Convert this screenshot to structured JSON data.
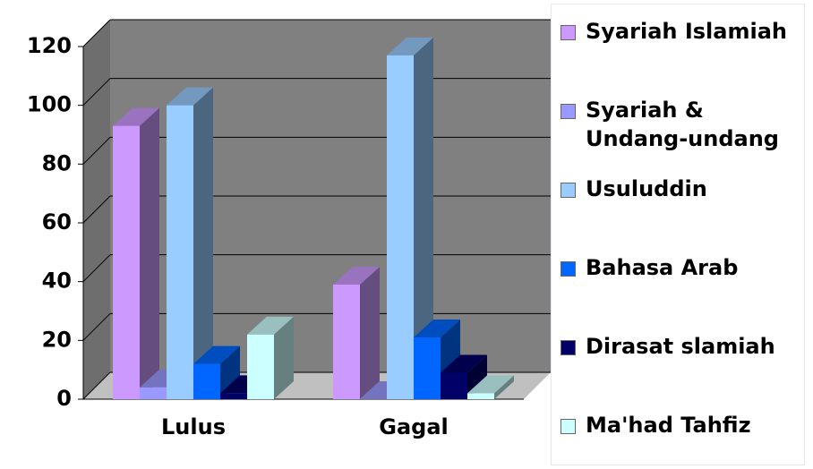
{
  "chart_data": {
    "type": "bar3d",
    "categories": [
      "Lulus",
      "Gagal"
    ],
    "series": [
      {
        "name": "Syariah Islamiah",
        "color": "#cc99ff",
        "values": [
          93,
          39
        ]
      },
      {
        "name": "Syariah & Undang-undang",
        "color": "#9999ff",
        "values": [
          4,
          0
        ]
      },
      {
        "name": "Usuluddin",
        "color": "#99ccff",
        "values": [
          100,
          117
        ]
      },
      {
        "name": "Bahasa Arab",
        "color": "#0066ff",
        "values": [
          12,
          21
        ]
      },
      {
        "name": "Dirasat slamiah",
        "color": "#000066",
        "values": [
          2,
          9
        ]
      },
      {
        "name": "Ma'had Tahfiz",
        "color": "#ccffff",
        "values": [
          22,
          2
        ]
      }
    ],
    "ylim": [
      0,
      120
    ],
    "yticks": [
      0,
      20,
      40,
      60,
      80,
      100,
      120
    ],
    "grid": true,
    "legend": "right"
  }
}
